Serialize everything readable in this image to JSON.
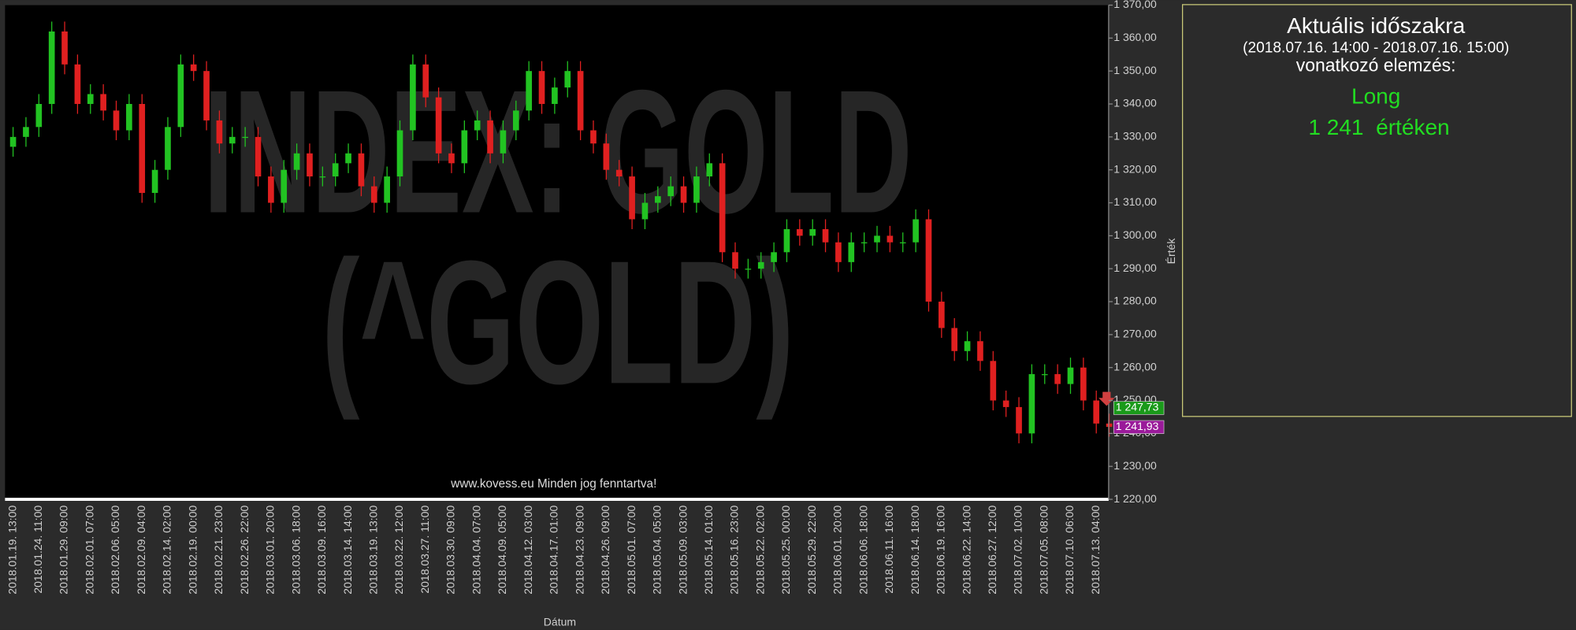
{
  "chart_data": {
    "type": "candlestick",
    "watermark": [
      "INDEX: GOLD",
      "(^GOLD)"
    ],
    "footer": "www.kovess.eu Minden jog fenntartva!",
    "x_label": "Dátum",
    "y_label": "Érték",
    "up_color": "#22c322",
    "down_color": "#e02020",
    "categories": [
      "2018.01.19. 13:00",
      null,
      "2018.01.24. 11:00",
      null,
      "2018.01.29. 09:00",
      null,
      "2018.02.01. 07:00",
      null,
      "2018.02.06. 05:00",
      null,
      "2018.02.09. 04:00",
      null,
      "2018.02.14. 02:00",
      null,
      "2018.02.19. 00:00",
      null,
      "2018.02.21. 23:00",
      null,
      "2018.02.26. 22:00",
      null,
      "2018.03.01. 20:00",
      null,
      "2018.03.06. 18:00",
      null,
      "2018.03.09. 16:00",
      null,
      "2018.03.14. 14:00",
      null,
      "2018.03.19. 13:00",
      null,
      "2018.03.22. 12:00",
      null,
      "2018.03.27. 11:00",
      null,
      "2018.03.30. 09:00",
      null,
      "2018.04.04. 07:00",
      null,
      "2018.04.09. 05:00",
      null,
      "2018.04.12. 03:00",
      null,
      "2018.04.17. 01:00",
      null,
      "2018.04.23. 09:00",
      null,
      "2018.04.26. 09:00",
      null,
      "2018.05.01. 07:00",
      null,
      "2018.05.04. 05:00",
      null,
      "2018.05.09. 03:00",
      null,
      "2018.05.14. 01:00",
      null,
      "2018.05.16. 23:00",
      null,
      "2018.05.22. 02:00",
      null,
      "2018.05.25. 00:00",
      null,
      "2018.05.29. 22:00",
      null,
      "2018.06.01. 20:00",
      null,
      "2018.06.06. 18:00",
      null,
      "2018.06.11. 16:00",
      null,
      "2018.06.14. 18:00",
      null,
      "2018.06.19. 16:00",
      null,
      "2018.06.22. 14:00",
      null,
      "2018.06.27. 12:00",
      null,
      "2018.07.02. 10:00",
      null,
      "2018.07.05. 08:00",
      null,
      "2018.07.10. 06:00",
      null,
      "2018.07.13. 04:00",
      null
    ],
    "open": [
      1327,
      1330,
      1333,
      1340,
      1362,
      1352,
      1340,
      1343,
      1338,
      1332,
      1340,
      1313,
      1320,
      1333,
      1352,
      1350,
      1335,
      1328,
      1330,
      1330,
      1318,
      1310,
      1320,
      1325,
      1318,
      1318,
      1322,
      1325,
      1315,
      1310,
      1318,
      1332,
      1352,
      1342,
      1325,
      1322,
      1332,
      1335,
      1325,
      1332,
      1338,
      1350,
      1340,
      1345,
      1350,
      1332,
      1328,
      1320,
      1318,
      1305,
      1310,
      1312,
      1315,
      1310,
      1318,
      1322,
      1295,
      1290,
      1290,
      1292,
      1295,
      1302,
      1300,
      1302,
      1298,
      1292,
      1298,
      1298,
      1300,
      1298,
      1298,
      1305,
      1280,
      1272,
      1265,
      1268,
      1262,
      1250,
      1248,
      1240,
      1258,
      1258,
      1255,
      1260,
      1250,
      1243
    ],
    "high": [
      1333,
      1336,
      1343,
      1365,
      1365,
      1355,
      1346,
      1346,
      1341,
      1343,
      1343,
      1323,
      1336,
      1355,
      1355,
      1353,
      1338,
      1333,
      1333,
      1333,
      1321,
      1323,
      1328,
      1328,
      1321,
      1325,
      1328,
      1328,
      1318,
      1321,
      1335,
      1355,
      1355,
      1345,
      1328,
      1335,
      1338,
      1338,
      1335,
      1341,
      1353,
      1353,
      1348,
      1353,
      1353,
      1335,
      1331,
      1323,
      1321,
      1313,
      1315,
      1318,
      1318,
      1321,
      1325,
      1325,
      1298,
      1293,
      1295,
      1298,
      1305,
      1305,
      1305,
      1305,
      1301,
      1301,
      1301,
      1303,
      1303,
      1301,
      1308,
      1308,
      1283,
      1275,
      1271,
      1271,
      1265,
      1253,
      1251,
      1261,
      1261,
      1261,
      1263,
      1263,
      1253,
      1246
    ],
    "low": [
      1324,
      1327,
      1330,
      1337,
      1349,
      1337,
      1337,
      1335,
      1329,
      1329,
      1310,
      1310,
      1317,
      1330,
      1347,
      1332,
      1325,
      1325,
      1327,
      1315,
      1307,
      1307,
      1317,
      1315,
      1315,
      1315,
      1319,
      1312,
      1307,
      1307,
      1315,
      1329,
      1339,
      1322,
      1319,
      1319,
      1329,
      1322,
      1322,
      1329,
      1335,
      1337,
      1337,
      1342,
      1329,
      1325,
      1317,
      1315,
      1302,
      1302,
      1307,
      1309,
      1307,
      1307,
      1315,
      1292,
      1287,
      1287,
      1287,
      1289,
      1292,
      1297,
      1297,
      1295,
      1289,
      1289,
      1295,
      1295,
      1295,
      1295,
      1295,
      1277,
      1269,
      1262,
      1262,
      1259,
      1247,
      1245,
      1237,
      1237,
      1255,
      1252,
      1252,
      1247,
      1240,
      1239
    ],
    "close": [
      1330,
      1333,
      1340,
      1362,
      1352,
      1340,
      1343,
      1338,
      1332,
      1340,
      1313,
      1320,
      1333,
      1352,
      1350,
      1335,
      1328,
      1330,
      1330,
      1318,
      1310,
      1320,
      1325,
      1318,
      1318,
      1322,
      1325,
      1315,
      1310,
      1318,
      1332,
      1352,
      1342,
      1325,
      1322,
      1332,
      1335,
      1325,
      1332,
      1338,
      1350,
      1340,
      1345,
      1350,
      1332,
      1328,
      1320,
      1318,
      1305,
      1310,
      1312,
      1315,
      1310,
      1318,
      1322,
      1295,
      1290,
      1290,
      1292,
      1295,
      1302,
      1300,
      1302,
      1298,
      1292,
      1298,
      1298,
      1300,
      1298,
      1298,
      1305,
      1280,
      1272,
      1265,
      1268,
      1262,
      1250,
      1248,
      1240,
      1258,
      1258,
      1255,
      1260,
      1250,
      1243,
      1242
    ],
    "ylim": [
      1220,
      1370
    ],
    "yticks": [
      {
        "value": 1220,
        "label": "1 220,00"
      },
      {
        "value": 1230,
        "label": "1 230,00"
      },
      {
        "value": 1240,
        "label": "1 240,00"
      },
      {
        "value": 1250,
        "label": "1 250,00"
      },
      {
        "value": 1260,
        "label": "1 260,00"
      },
      {
        "value": 1270,
        "label": "1 270,00"
      },
      {
        "value": 1280,
        "label": "1 280,00"
      },
      {
        "value": 1290,
        "label": "1 290,00"
      },
      {
        "value": 1300,
        "label": "1 300,00"
      },
      {
        "value": 1310,
        "label": "1 310,00"
      },
      {
        "value": 1320,
        "label": "1 320,00"
      },
      {
        "value": 1330,
        "label": "1 330,00"
      },
      {
        "value": 1340,
        "label": "1 340,00"
      },
      {
        "value": 1350,
        "label": "1 350,00"
      },
      {
        "value": 1360,
        "label": "1 360,00"
      },
      {
        "value": 1370,
        "label": "1 370,00"
      }
    ],
    "price_labels": [
      {
        "value": 1247.73,
        "label": "1 247,73",
        "color": "#1a9a1a"
      },
      {
        "value": 1241.93,
        "label": "1 241,93",
        "color": "#9a1a9a"
      }
    ]
  },
  "panel": {
    "title": "Aktuális időszakra",
    "period": "(2018.07.16. 14:00 - 2018.07.16. 15:00)",
    "subtitle": "vonatkozó elemzés:",
    "signal": "Long",
    "level": "1 241  értéken"
  }
}
